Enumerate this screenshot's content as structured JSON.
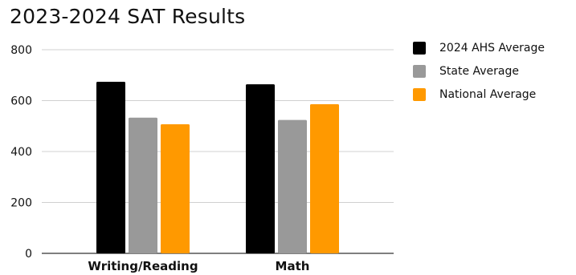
{
  "chart_data": {
    "type": "bar",
    "title": "2023-2024 SAT Results",
    "xlabel": "",
    "ylabel": "",
    "categories": [
      "Writing/Reading",
      "Math"
    ],
    "series": [
      {
        "name": "2024 AHS Average",
        "values": [
          674,
          664
        ],
        "color": "#000000"
      },
      {
        "name": "State Average",
        "values": [
          533,
          524
        ],
        "color": "#999999"
      },
      {
        "name": "National Average",
        "values": [
          507,
          586
        ],
        "color": "#ff9900"
      }
    ],
    "ylim": [
      0,
      800
    ],
    "yticks": [
      "0",
      "200",
      "400",
      "600",
      "800"
    ],
    "grid": true,
    "legend_position": "right"
  }
}
